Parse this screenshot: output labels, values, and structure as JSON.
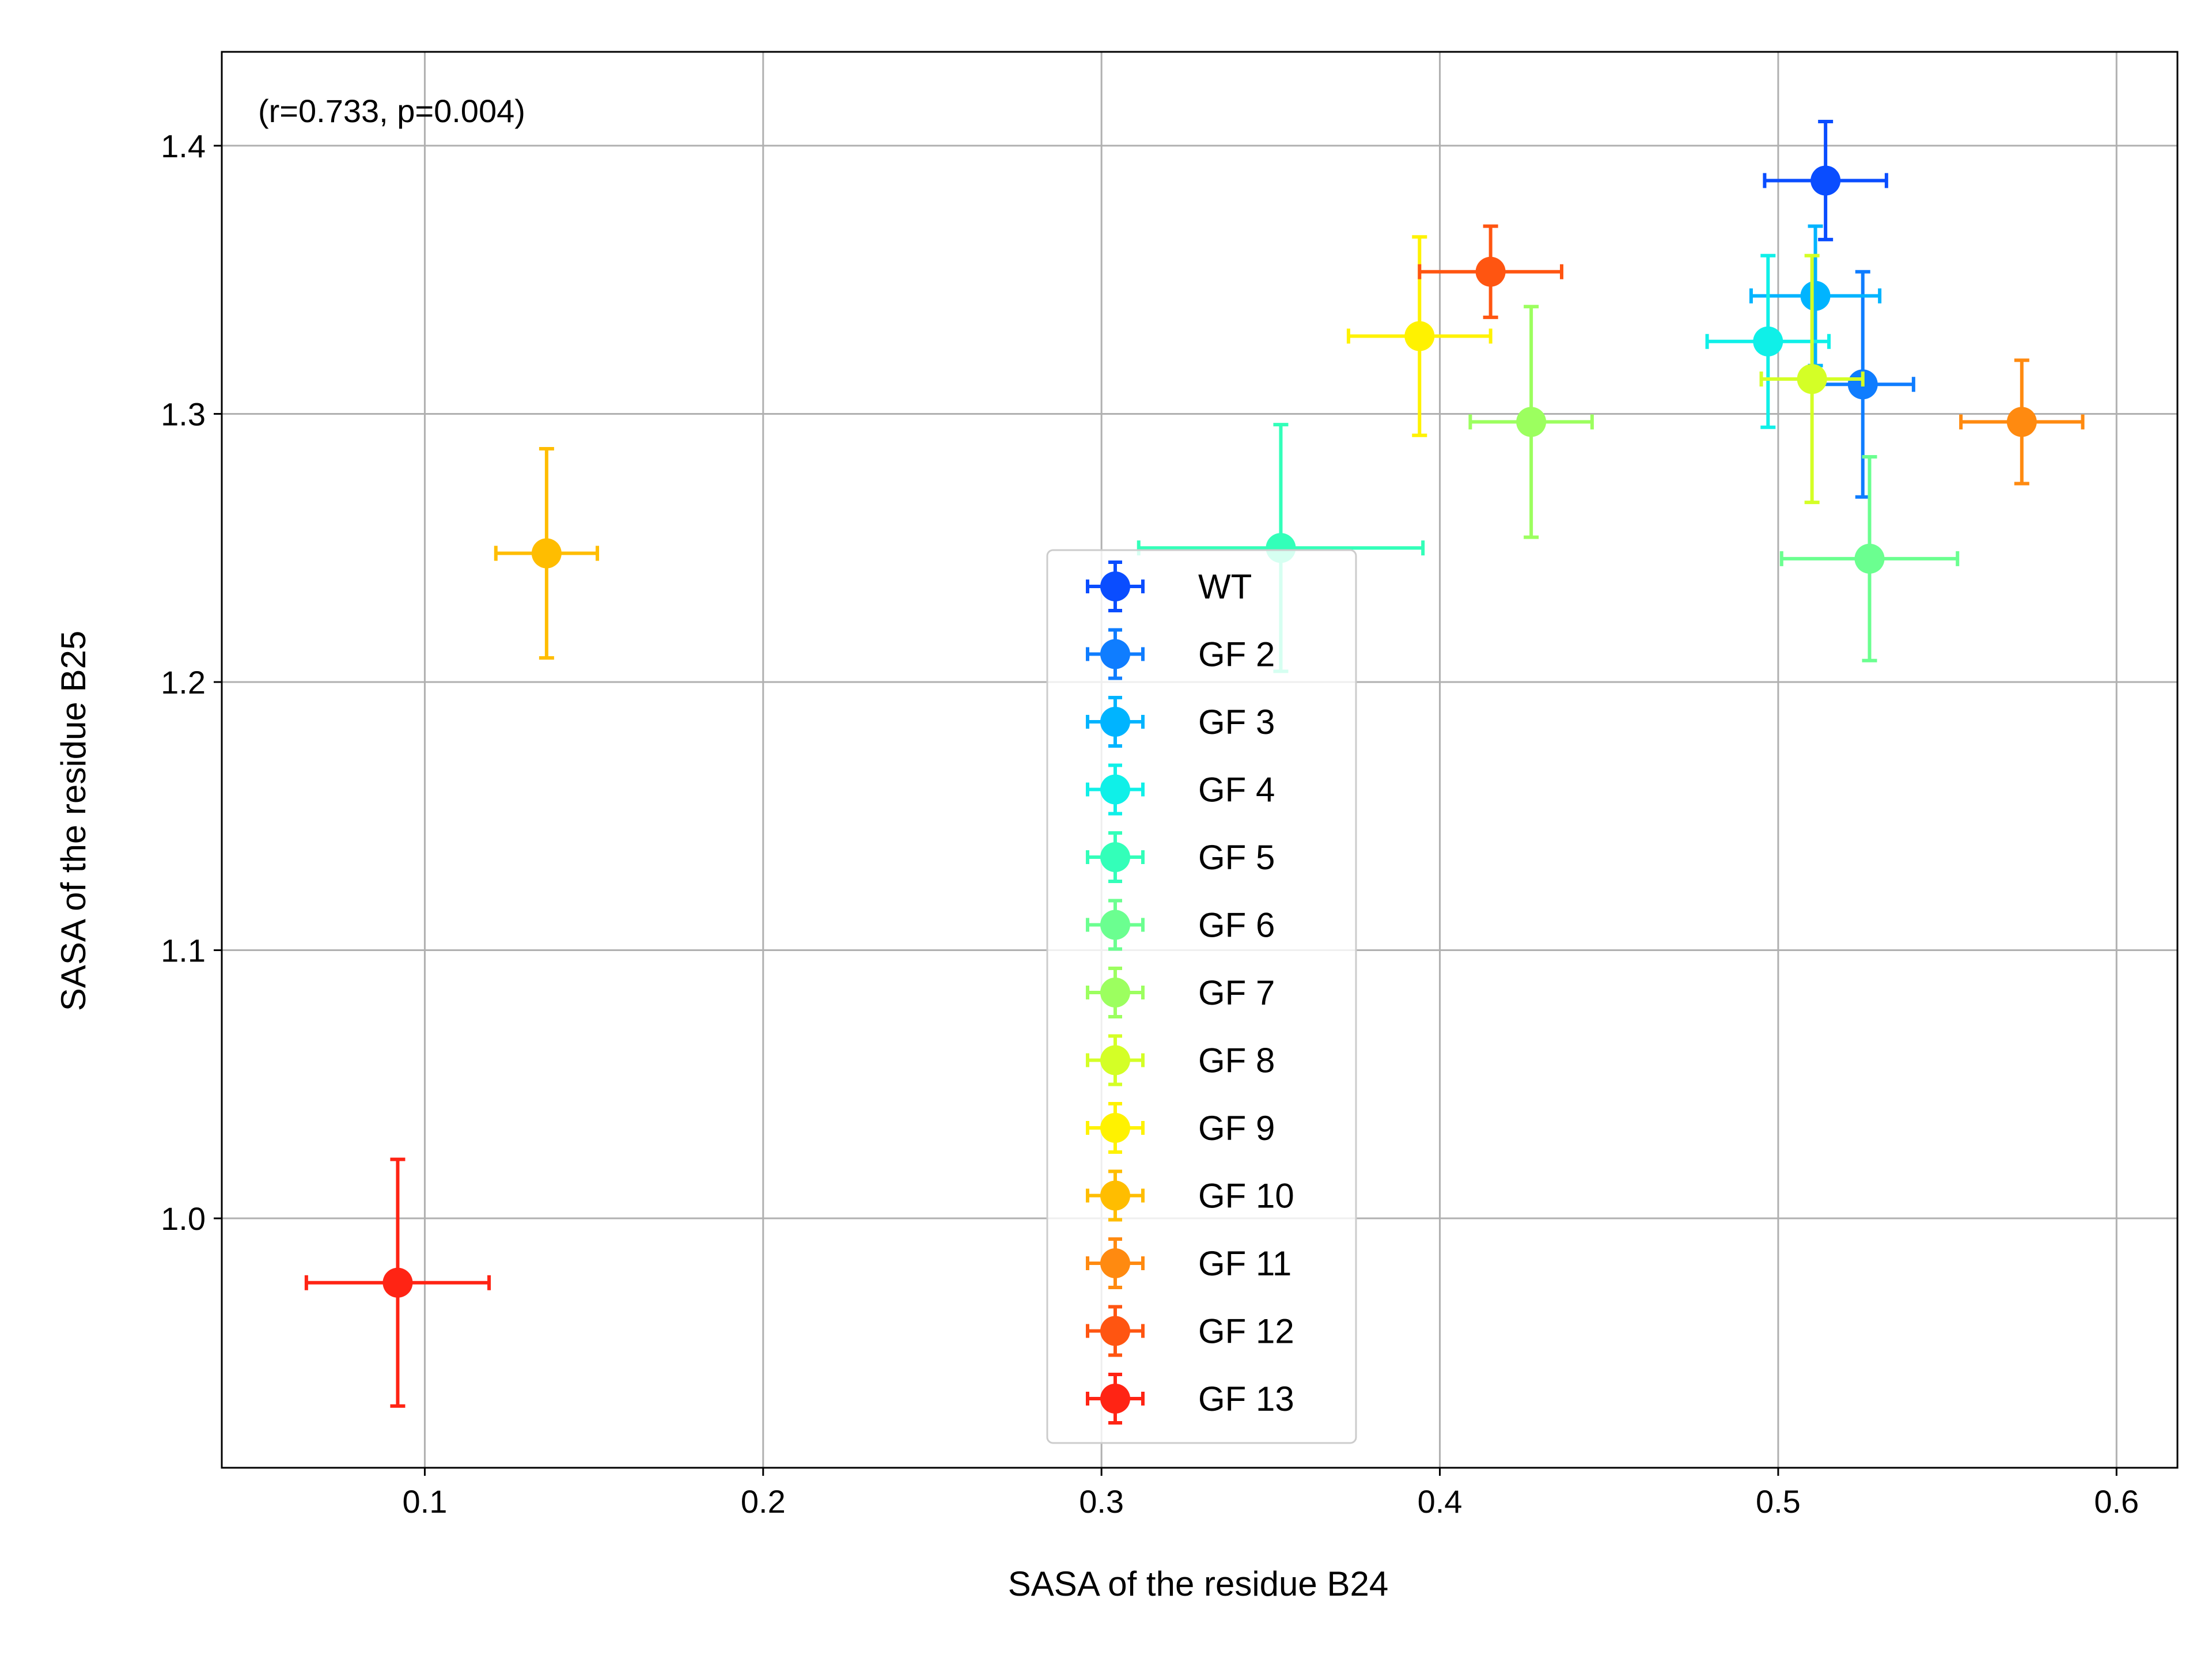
{
  "chart_data": {
    "type": "scatter",
    "title": "",
    "xlabel": "SASA of the residue B24",
    "ylabel": "SASA of the residue B25",
    "annotation": "(r=0.733, p=0.004)",
    "xlim": [
      0.04,
      0.618
    ],
    "ylim": [
      0.907,
      1.435
    ],
    "xticks": [
      0.1,
      0.2,
      0.3,
      0.4,
      0.5,
      0.6
    ],
    "xtick_labels": [
      "0.1",
      "0.2",
      "0.3",
      "0.4",
      "0.5",
      "0.6"
    ],
    "yticks": [
      1.0,
      1.1,
      1.2,
      1.3,
      1.4
    ],
    "ytick_labels": [
      "1.0",
      "1.1",
      "1.2",
      "1.3",
      "1.4"
    ],
    "grid": true,
    "legend_position": "lower-center",
    "series": [
      {
        "name": "WT",
        "color": "#0a4dff",
        "x": 0.514,
        "y": 1.387,
        "xerr": 0.018,
        "yerr": 0.022
      },
      {
        "name": "GF 2",
        "color": "#0f7dff",
        "x": 0.525,
        "y": 1.311,
        "xerr": 0.015,
        "yerr": 0.042
      },
      {
        "name": "GF 3",
        "color": "#00b4ff",
        "x": 0.511,
        "y": 1.344,
        "xerr": 0.019,
        "yerr": 0.026
      },
      {
        "name": "GF 4",
        "color": "#0ff0e8",
        "x": 0.497,
        "y": 1.327,
        "xerr": 0.018,
        "yerr": 0.032
      },
      {
        "name": "GF 5",
        "color": "#33ffb9",
        "x": 0.353,
        "y": 1.25,
        "xerr": 0.042,
        "yerr": 0.046
      },
      {
        "name": "GF 6",
        "color": "#6bff90",
        "x": 0.527,
        "y": 1.246,
        "xerr": 0.026,
        "yerr": 0.038
      },
      {
        "name": "GF 7",
        "color": "#9cff5f",
        "x": 0.427,
        "y": 1.297,
        "xerr": 0.018,
        "yerr": 0.043
      },
      {
        "name": "GF 8",
        "color": "#d4ff26",
        "x": 0.51,
        "y": 1.313,
        "xerr": 0.015,
        "yerr": 0.046
      },
      {
        "name": "GF 9",
        "color": "#fff200",
        "x": 0.394,
        "y": 1.329,
        "xerr": 0.021,
        "yerr": 0.037
      },
      {
        "name": "GF 10",
        "color": "#ffbd00",
        "x": 0.136,
        "y": 1.248,
        "xerr": 0.015,
        "yerr": 0.039
      },
      {
        "name": "GF 11",
        "color": "#ff8a10",
        "x": 0.572,
        "y": 1.297,
        "xerr": 0.018,
        "yerr": 0.023
      },
      {
        "name": "GF 12",
        "color": "#ff5511",
        "x": 0.415,
        "y": 1.353,
        "xerr": 0.021,
        "yerr": 0.017
      },
      {
        "name": "GF 13",
        "color": "#ff2414",
        "x": 0.092,
        "y": 0.976,
        "xerr": 0.027,
        "yerr": 0.046
      }
    ]
  }
}
